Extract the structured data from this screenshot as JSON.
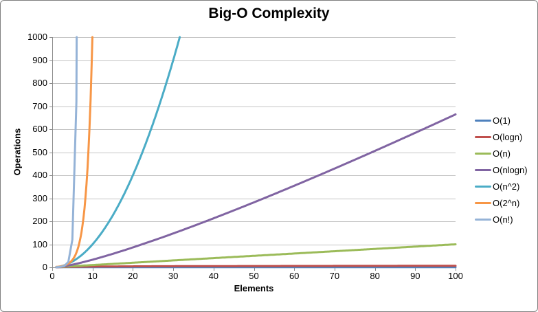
{
  "frame": {
    "background": "#FFFFFF",
    "border_color": "#7F7F7F"
  },
  "chart_data": {
    "type": "line",
    "title": "Big-O Complexity",
    "xlabel": "Elements",
    "ylabel": "Operations",
    "xlim": [
      0,
      100
    ],
    "ylim": [
      0,
      1000
    ],
    "x_ticks": [
      0,
      10,
      20,
      30,
      40,
      50,
      60,
      70,
      80,
      90,
      100
    ],
    "y_ticks": [
      0,
      100,
      200,
      300,
      400,
      500,
      600,
      700,
      800,
      900,
      1000
    ],
    "grid": "horizontal-only",
    "legend_position": "right",
    "axis_color": "#8C8C8C",
    "gridline_color": "#C3C3C3",
    "line_width": 3,
    "series": [
      {
        "name": "O(1)",
        "color": "#4F81BD",
        "formula": "1",
        "samples": {
          "x": [
            1,
            10,
            50,
            100
          ],
          "y": [
            1,
            1,
            1,
            1
          ]
        }
      },
      {
        "name": "O(logn)",
        "color": "#C0504D",
        "formula": "log2(n)",
        "samples": {
          "x": [
            1,
            2,
            4,
            8,
            16,
            32,
            64,
            100
          ],
          "y": [
            0,
            1,
            2,
            3,
            4,
            5,
            6,
            6.64
          ]
        }
      },
      {
        "name": "O(n)",
        "color": "#9BBB59",
        "formula": "n",
        "samples": {
          "x": [
            1,
            25,
            50,
            75,
            100
          ],
          "y": [
            1,
            25,
            50,
            75,
            100
          ]
        }
      },
      {
        "name": "O(nlogn)",
        "color": "#8064A2",
        "formula": "n*log2(n)",
        "samples": {
          "x": [
            1,
            10,
            25,
            50,
            75,
            100
          ],
          "y": [
            0,
            33.2,
            116.1,
            282.2,
            467.3,
            664.4
          ]
        }
      },
      {
        "name": "O(n^2)",
        "color": "#4BACC6",
        "formula": "n^2",
        "samples": {
          "x": [
            1,
            5,
            10,
            15,
            20,
            25,
            30,
            31.6
          ],
          "y": [
            1,
            25,
            100,
            225,
            400,
            625,
            900,
            1000
          ]
        }
      },
      {
        "name": "O(2^n)",
        "color": "#F79646",
        "formula": "2^n",
        "samples": {
          "x": [
            1,
            2,
            3,
            4,
            5,
            6,
            7,
            8,
            9,
            10
          ],
          "y": [
            2,
            4,
            8,
            16,
            32,
            64,
            128,
            256,
            512,
            1024
          ]
        }
      },
      {
        "name": "O(n!)",
        "color": "#95B3D7",
        "formula": "n!",
        "samples": {
          "x": [
            1,
            2,
            3,
            4,
            5,
            6,
            6.07
          ],
          "y": [
            1,
            2,
            6,
            24,
            120,
            720,
            1000
          ]
        }
      }
    ]
  }
}
